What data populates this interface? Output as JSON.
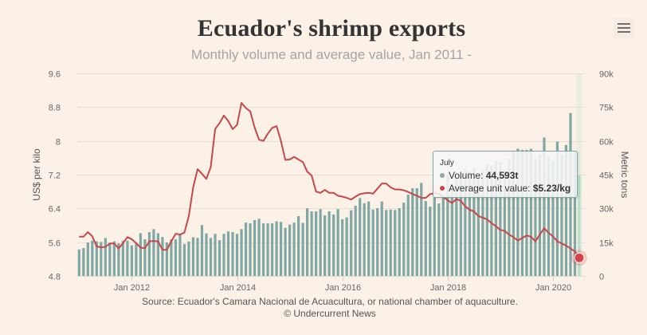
{
  "header": {
    "title": "Ecuador's shrimp exports",
    "subtitle": "Monthly volume and average value, Jan 2011 -"
  },
  "menu": {
    "icon": "hamburger-menu-icon"
  },
  "footer": {
    "source": "Source: Ecuador's Camara Nacional de Acuacultura, or national chamber of aquaculture.",
    "credit": "© Undercurrent News"
  },
  "tooltip": {
    "title": "July",
    "rows": [
      {
        "label": "Volume: ",
        "value": "44,593t",
        "color": "#7fa7a4"
      },
      {
        "label": "Average unit value: ",
        "value": "$5.23/kg",
        "color": "#c8474b"
      }
    ]
  },
  "colors": {
    "bars": "#7fa7a4",
    "bar_hover": "#b7dec7",
    "line": "#c8474b",
    "marker": "#d9424b",
    "grid": "#e9ded3",
    "background": "#fbf1e7"
  },
  "chart_data": {
    "type": "bar",
    "title": "Ecuador's shrimp exports",
    "subtitle": "Monthly volume and average value, Jan 2011 -",
    "xlabel": "",
    "x_ticks": [
      {
        "label": "Jan 2012",
        "category": "2012-01"
      },
      {
        "label": "Jan 2014",
        "category": "2014-01"
      },
      {
        "label": "Jan 2016",
        "category": "2016-01"
      },
      {
        "label": "Jan 2018",
        "category": "2018-01"
      },
      {
        "label": "Jan 2020",
        "category": "2020-01"
      }
    ],
    "yaxis_left": {
      "title": "US$ per kilo",
      "min": 4.8,
      "max": 9.6,
      "ticks": [
        4.8,
        5.6,
        6.4,
        7.2,
        8,
        8.8,
        9.6
      ],
      "tick_labels": [
        "4.8",
        "5.6",
        "6.4",
        "7.2",
        "8",
        "8.8",
        "9.6"
      ]
    },
    "yaxis_right": {
      "title": "Metric tons",
      "min": 0,
      "max": 90000,
      "ticks": [
        0,
        15000,
        30000,
        45000,
        60000,
        75000,
        90000
      ],
      "tick_labels": [
        "0",
        "15k",
        "30k",
        "45k",
        "60k",
        "75k",
        "90k"
      ]
    },
    "grid": true,
    "legend": "none",
    "highlighted_point": {
      "category": "2020-07",
      "label": "July"
    },
    "categories": [
      "2011-01",
      "2011-02",
      "2011-03",
      "2011-04",
      "2011-05",
      "2011-06",
      "2011-07",
      "2011-08",
      "2011-09",
      "2011-10",
      "2011-11",
      "2011-12",
      "2012-01",
      "2012-02",
      "2012-03",
      "2012-04",
      "2012-05",
      "2012-06",
      "2012-07",
      "2012-08",
      "2012-09",
      "2012-10",
      "2012-11",
      "2012-12",
      "2013-01",
      "2013-02",
      "2013-03",
      "2013-04",
      "2013-05",
      "2013-06",
      "2013-07",
      "2013-08",
      "2013-09",
      "2013-10",
      "2013-11",
      "2013-12",
      "2014-01",
      "2014-02",
      "2014-03",
      "2014-04",
      "2014-05",
      "2014-06",
      "2014-07",
      "2014-08",
      "2014-09",
      "2014-10",
      "2014-11",
      "2014-12",
      "2015-01",
      "2015-02",
      "2015-03",
      "2015-04",
      "2015-05",
      "2015-06",
      "2015-07",
      "2015-08",
      "2015-09",
      "2015-10",
      "2015-11",
      "2015-12",
      "2016-01",
      "2016-02",
      "2016-03",
      "2016-04",
      "2016-05",
      "2016-06",
      "2016-07",
      "2016-08",
      "2016-09",
      "2016-10",
      "2016-11",
      "2016-12",
      "2017-01",
      "2017-02",
      "2017-03",
      "2017-04",
      "2017-05",
      "2017-06",
      "2017-07",
      "2017-08",
      "2017-09",
      "2017-10",
      "2017-11",
      "2017-12",
      "2018-01",
      "2018-02",
      "2018-03",
      "2018-04",
      "2018-05",
      "2018-06",
      "2018-07",
      "2018-08",
      "2018-09",
      "2018-10",
      "2018-11",
      "2018-12",
      "2019-01",
      "2019-02",
      "2019-03",
      "2019-04",
      "2019-05",
      "2019-06",
      "2019-07",
      "2019-08",
      "2019-09",
      "2019-10",
      "2019-11",
      "2019-12",
      "2020-01",
      "2020-02",
      "2020-03",
      "2020-04",
      "2020-05",
      "2020-06",
      "2020-07"
    ],
    "series": [
      {
        "name": "Volume",
        "type": "bar",
        "axis": "right",
        "unit": "t",
        "values": [
          11800,
          12400,
          14900,
          15700,
          15400,
          15100,
          16900,
          14800,
          15400,
          14500,
          15700,
          15700,
          13600,
          14500,
          19000,
          16300,
          19500,
          20800,
          19000,
          17300,
          14900,
          16300,
          16300,
          18700,
          14200,
          15300,
          17200,
          16900,
          22600,
          18900,
          16900,
          18700,
          15900,
          18700,
          19800,
          19500,
          18700,
          20800,
          23700,
          23400,
          24800,
          25400,
          23400,
          23400,
          23400,
          24300,
          24000,
          21400,
          22800,
          23700,
          26600,
          23600,
          30100,
          28700,
          28700,
          29700,
          26900,
          28700,
          27300,
          29700,
          25200,
          26000,
          29200,
          31200,
          34600,
          32300,
          33100,
          29500,
          30100,
          33100,
          29300,
          29500,
          29300,
          30100,
          32600,
          36100,
          39000,
          39000,
          41400,
          33300,
          30800,
          34900,
          32200,
          35200,
          45000,
          38500,
          46000,
          44000,
          47500,
          46500,
          48000,
          44500,
          47000,
          50000,
          49000,
          51000,
          50500,
          47000,
          52000,
          55500,
          56500,
          56000,
          56000,
          56500,
          52000,
          54000,
          61500,
          53000,
          51000,
          59700,
          54000,
          58200,
          72400,
          55300,
          44593
        ]
      },
      {
        "name": "Average unit value",
        "type": "line",
        "axis": "left",
        "unit": "$/kg",
        "values": [
          5.73,
          5.73,
          5.84,
          5.74,
          5.5,
          5.48,
          5.49,
          5.57,
          5.57,
          5.45,
          5.58,
          5.72,
          5.67,
          5.58,
          5.47,
          5.46,
          5.62,
          5.63,
          5.62,
          5.42,
          5.42,
          5.62,
          5.8,
          5.78,
          5.83,
          6.22,
          6.9,
          7.33,
          7.22,
          7.1,
          7.38,
          8.28,
          8.42,
          8.6,
          8.47,
          8.28,
          8.38,
          8.9,
          8.78,
          8.7,
          8.32,
          8.03,
          8.0,
          8.17,
          8.31,
          8.35,
          8.0,
          7.55,
          7.56,
          7.62,
          7.56,
          7.5,
          7.27,
          7.18,
          6.8,
          6.77,
          6.84,
          6.77,
          6.77,
          6.7,
          6.68,
          6.65,
          6.61,
          6.68,
          6.74,
          6.76,
          6.77,
          6.75,
          6.87,
          6.99,
          6.99,
          6.9,
          6.85,
          6.85,
          6.83,
          6.79,
          6.74,
          6.7,
          6.65,
          6.65,
          6.74,
          6.76,
          6.75,
          6.68,
          6.59,
          6.53,
          6.62,
          6.58,
          6.45,
          6.37,
          6.33,
          6.22,
          6.18,
          6.14,
          6.05,
          5.98,
          5.89,
          5.87,
          5.78,
          5.72,
          5.64,
          5.7,
          5.76,
          5.73,
          5.62,
          5.78,
          5.93,
          5.82,
          5.74,
          5.62,
          5.57,
          5.52,
          5.45,
          5.38,
          5.23
        ]
      }
    ]
  }
}
